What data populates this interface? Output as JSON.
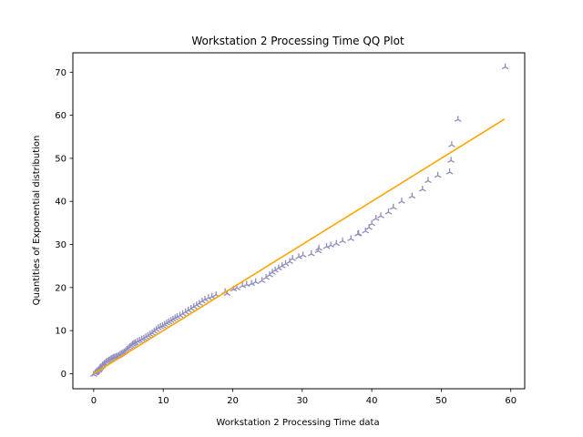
{
  "chart_data": {
    "type": "scatter",
    "title": "Workstation 2 Processing Time QQ Plot",
    "xlabel": "Workstation 2 Processing Time data",
    "ylabel": "Quantities of Exponential distribution",
    "xlim": [
      -3.0,
      62.0
    ],
    "ylim": [
      -3.5,
      74.5
    ],
    "xticks": [
      0,
      10,
      20,
      30,
      40,
      50,
      60
    ],
    "yticks": [
      0,
      10,
      20,
      30,
      40,
      50,
      60,
      70
    ],
    "grid": false,
    "marker_color": "#8c8cbd",
    "line_color": "#ffa500",
    "reference_line": {
      "x": [
        0,
        59.1
      ],
      "y": [
        0,
        59.1
      ]
    },
    "points": [
      [
        0.0,
        -0.2
      ],
      [
        0.2,
        0.1
      ],
      [
        0.3,
        0.2
      ],
      [
        0.4,
        0.4
      ],
      [
        0.5,
        0.6
      ],
      [
        0.7,
        0.8
      ],
      [
        0.8,
        1.0
      ],
      [
        0.9,
        1.3
      ],
      [
        1.0,
        1.5
      ],
      [
        1.2,
        1.7
      ],
      [
        1.3,
        2.0
      ],
      [
        1.5,
        2.2
      ],
      [
        1.6,
        2.4
      ],
      [
        1.8,
        2.7
      ],
      [
        2.0,
        2.9
      ],
      [
        2.2,
        3.1
      ],
      [
        2.4,
        3.3
      ],
      [
        2.6,
        3.5
      ],
      [
        2.8,
        3.7
      ],
      [
        3.0,
        3.8
      ],
      [
        3.2,
        3.9
      ],
      [
        3.4,
        4.0
      ],
      [
        3.6,
        4.2
      ],
      [
        3.8,
        4.4
      ],
      [
        4.0,
        4.6
      ],
      [
        4.2,
        4.8
      ],
      [
        4.4,
        5.0
      ],
      [
        4.6,
        5.3
      ],
      [
        4.8,
        5.6
      ],
      [
        5.0,
        5.9
      ],
      [
        5.2,
        6.2
      ],
      [
        5.4,
        6.5
      ],
      [
        5.6,
        6.8
      ],
      [
        5.8,
        7.0
      ],
      [
        6.0,
        7.2
      ],
      [
        6.3,
        7.5
      ],
      [
        6.6,
        7.7
      ],
      [
        6.9,
        8.0
      ],
      [
        7.2,
        8.2
      ],
      [
        7.5,
        8.5
      ],
      [
        7.8,
        8.8
      ],
      [
        8.1,
        9.1
      ],
      [
        8.4,
        9.4
      ],
      [
        8.7,
        9.8
      ],
      [
        9.0,
        10.2
      ],
      [
        9.3,
        10.6
      ],
      [
        9.6,
        10.9
      ],
      [
        9.9,
        11.1
      ],
      [
        10.2,
        11.4
      ],
      [
        10.5,
        11.7
      ],
      [
        10.8,
        12.0
      ],
      [
        11.1,
        12.3
      ],
      [
        11.4,
        12.6
      ],
      [
        11.7,
        12.9
      ],
      [
        12.0,
        13.2
      ],
      [
        12.4,
        13.5
      ],
      [
        12.8,
        13.9
      ],
      [
        13.2,
        14.3
      ],
      [
        13.6,
        14.7
      ],
      [
        14.0,
        15.1
      ],
      [
        14.4,
        15.5
      ],
      [
        14.8,
        15.9
      ],
      [
        15.2,
        16.3
      ],
      [
        15.6,
        16.8
      ],
      [
        16.0,
        17.2
      ],
      [
        16.5,
        17.6
      ],
      [
        17.0,
        17.9
      ],
      [
        17.6,
        18.3
      ],
      [
        18.9,
        19.0
      ],
      [
        19.2,
        18.6
      ],
      [
        20.1,
        19.6
      ],
      [
        20.6,
        19.9
      ],
      [
        21.4,
        20.4
      ],
      [
        22.0,
        20.7
      ],
      [
        22.7,
        20.9
      ],
      [
        23.3,
        21.3
      ],
      [
        24.2,
        21.6
      ],
      [
        24.8,
        22.3
      ],
      [
        25.3,
        22.9
      ],
      [
        25.7,
        23.5
      ],
      [
        26.1,
        24.0
      ],
      [
        26.6,
        24.5
      ],
      [
        27.1,
        25.0
      ],
      [
        27.6,
        25.5
      ],
      [
        28.2,
        26.0
      ],
      [
        28.6,
        26.7
      ],
      [
        29.5,
        27.1
      ],
      [
        30.1,
        27.5
      ],
      [
        31.3,
        27.8
      ],
      [
        32.3,
        28.5
      ],
      [
        32.4,
        29.1
      ],
      [
        33.5,
        29.5
      ],
      [
        34.1,
        29.8
      ],
      [
        34.9,
        30.2
      ],
      [
        35.8,
        30.8
      ],
      [
        37.0,
        31.3
      ],
      [
        38.0,
        32.4
      ],
      [
        38.1,
        32.5
      ],
      [
        39.1,
        33.1
      ],
      [
        39.6,
        33.9
      ],
      [
        40.0,
        34.8
      ],
      [
        40.6,
        36.0
      ],
      [
        41.3,
        36.6
      ],
      [
        42.4,
        37.5
      ],
      [
        43.1,
        38.6
      ],
      [
        44.3,
        40.0
      ],
      [
        45.8,
        41.2
      ],
      [
        47.3,
        42.8
      ],
      [
        48.1,
        44.8
      ],
      [
        49.5,
        46.0
      ],
      [
        51.2,
        46.8
      ],
      [
        51.4,
        49.5
      ],
      [
        51.5,
        53.1
      ],
      [
        52.4,
        59.0
      ],
      [
        59.2,
        71.2
      ]
    ]
  }
}
